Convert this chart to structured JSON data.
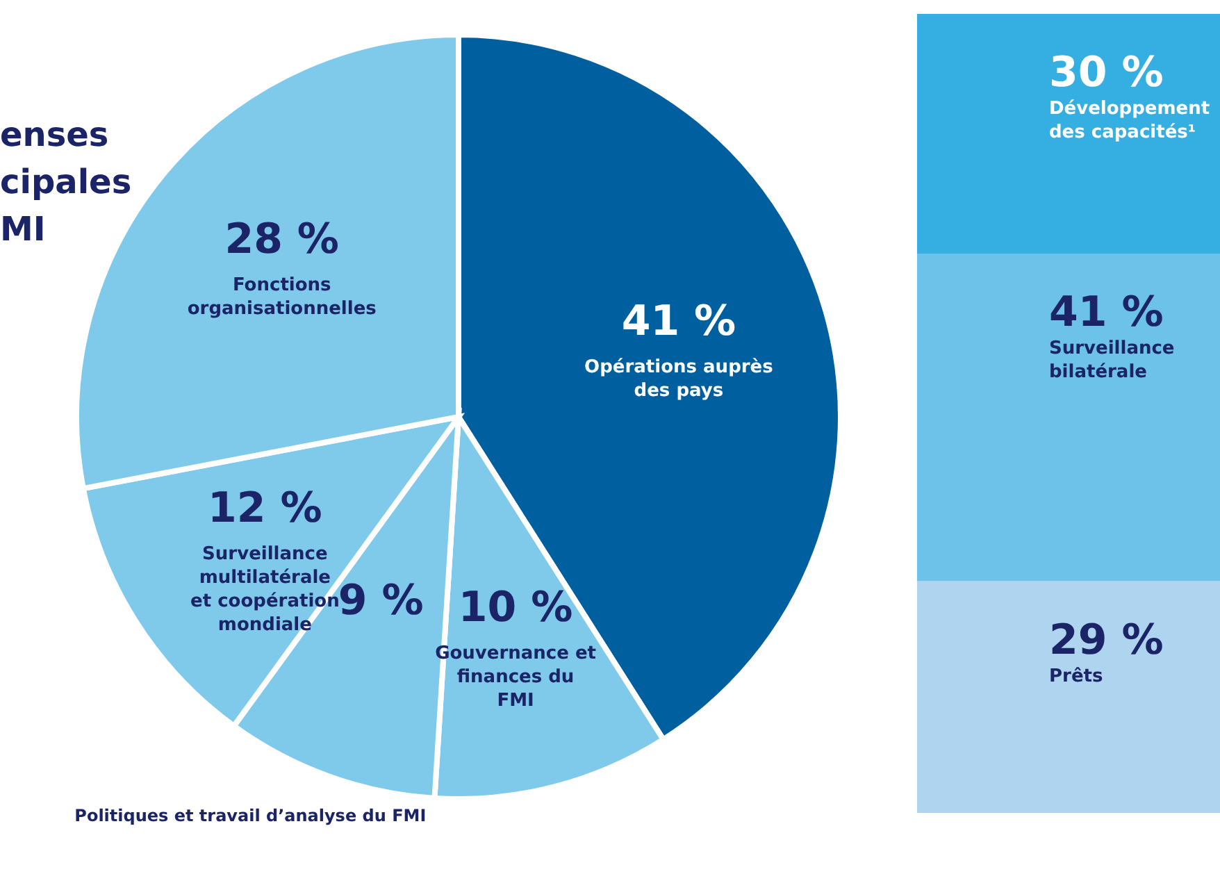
{
  "chart_data": [
    {
      "type": "pie",
      "title": "enses\ncipales\nMI",
      "categories": [
        "Opérations auprès des pays",
        "Gouvernance et finances du FMI",
        "Politiques et travail d’analyse du FMI",
        "Surveillance multilatérale et coopération mondiale",
        "Fonctions organisationnelles"
      ],
      "values": [
        41,
        10,
        9,
        12,
        28
      ],
      "value_labels": [
        "41 %",
        "10 %",
        "9 %",
        "12 %",
        "28 %"
      ],
      "colors": [
        "#005f9e",
        "#7fcaeb",
        "#7fcaeb",
        "#7fcaeb",
        "#7fcaeb"
      ]
    },
    {
      "type": "bar",
      "stacked": true,
      "categories": [
        null
      ],
      "tick_labels": false,
      "series": [
        {
          "name": "Prêts",
          "color": "#afd4ef",
          "values": [
            29
          ],
          "value_labels": [
            "29 %"
          ]
        },
        {
          "name": "Surveillance bilatérale",
          "color": "#6cc2e8",
          "values": [
            41
          ],
          "value_labels": [
            "41 %"
          ]
        },
        {
          "name": "Développement des capacités¹",
          "color": "#35aee2",
          "values": [
            30
          ],
          "value_labels": [
            "30 %"
          ]
        }
      ]
    }
  ]
}
